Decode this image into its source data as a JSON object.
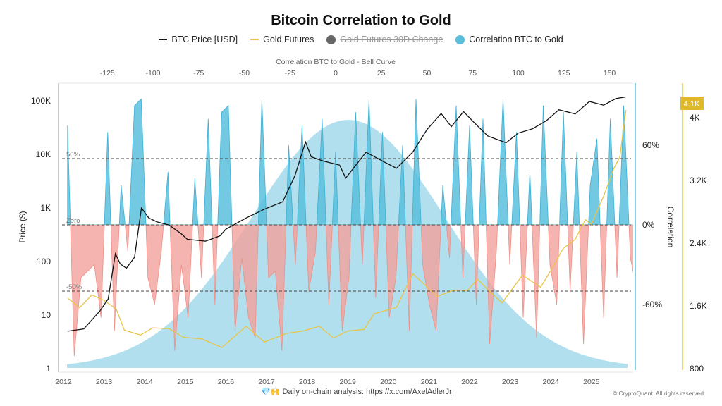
{
  "chart_data": {
    "type": "line",
    "title": "Bitcoin Correlation to Gold",
    "legend": [
      {
        "label": "BTC Price [USD]",
        "color": "#111111",
        "kind": "line",
        "hidden": false
      },
      {
        "label": "Gold Futures",
        "color": "#e8c547",
        "kind": "line",
        "hidden": false
      },
      {
        "label": "Gold Futures 30D Change",
        "color": "#666666",
        "kind": "dot",
        "hidden": true
      },
      {
        "label": "Correlation BTC to Gold",
        "color": "#5bbfdc",
        "kind": "dot",
        "hidden": false
      }
    ],
    "legend_position": "top",
    "x_axis": {
      "type": "date",
      "range": [
        2012.0,
        2026.0
      ],
      "ticks": [
        "2012",
        "2013",
        "2014",
        "2015",
        "2016",
        "2017",
        "2018",
        "2019",
        "2020",
        "2021",
        "2022",
        "2023",
        "2024",
        "2025"
      ]
    },
    "top_axis": {
      "label": "Correlation BTC to Gold - Bell Curve",
      "range": [
        -150,
        165
      ],
      "ticks": [
        -125,
        -100,
        -75,
        -50,
        -25,
        0,
        25,
        50,
        75,
        100,
        125,
        150
      ]
    },
    "y_left": {
      "label": "Price ($)",
      "scale": "log",
      "range": [
        1,
        200000
      ],
      "ticks": [
        "1",
        "10",
        "100",
        "1K",
        "10K",
        "100K"
      ]
    },
    "y_corr": {
      "label": "Correlation",
      "range": [
        -110,
        106
      ],
      "ticks": [
        "60%",
        "0%",
        "-60%"
      ],
      "unit": "%"
    },
    "y_gold": {
      "range": [
        800,
        4300
      ],
      "ticks": [
        "800",
        "1.6K",
        "2.4K",
        "3.2K",
        "4K"
      ],
      "current_badge": "4.1K"
    },
    "reference_lines": [
      {
        "label": "50%",
        "value": 50
      },
      {
        "label": "Zero",
        "value": 0
      },
      {
        "label": "-50%",
        "value": -50
      }
    ],
    "grid": false,
    "colors": {
      "btc": "#111111",
      "gold": "#e8c547",
      "corr_pos": "#5bbfdc",
      "corr_neg": "#f2a19b",
      "bell": "#a9dceb"
    },
    "bell_curve": {
      "mean": 7,
      "std": 53
    },
    "btc_price": {
      "x": [
        2012.1,
        2012.5,
        2012.9,
        2013.1,
        2013.28,
        2013.4,
        2013.55,
        2013.75,
        2013.92,
        2014.1,
        2014.3,
        2014.6,
        2014.9,
        2015.05,
        2015.5,
        2015.85,
        2016.0,
        2016.5,
        2016.95,
        2017.4,
        2017.7,
        2017.96,
        2018.1,
        2018.4,
        2018.8,
        2018.95,
        2019.45,
        2019.9,
        2020.2,
        2020.6,
        2020.95,
        2021.3,
        2021.55,
        2021.85,
        2022.1,
        2022.45,
        2022.9,
        2023.2,
        2023.55,
        2023.9,
        2024.2,
        2024.6,
        2024.95,
        2025.3,
        2025.6,
        2025.85
      ],
      "y": [
        5,
        5.5,
        12,
        20,
        140,
        90,
        75,
        120,
        1000,
        650,
        550,
        480,
        330,
        260,
        240,
        300,
        400,
        650,
        950,
        1300,
        4000,
        17000,
        9000,
        7500,
        6300,
        3600,
        11000,
        7200,
        5500,
        11000,
        29000,
        58000,
        33000,
        63000,
        40000,
        22000,
        16500,
        25000,
        30000,
        43000,
        68000,
        57000,
        97000,
        83000,
        110000,
        118000
      ]
    },
    "gold_futures": {
      "x": [
        2012.1,
        2012.4,
        2012.7,
        2013.0,
        2013.3,
        2013.5,
        2013.9,
        2014.2,
        2014.6,
        2014.95,
        2015.4,
        2015.9,
        2016.5,
        2016.95,
        2017.5,
        2017.9,
        2018.3,
        2018.65,
        2019.0,
        2019.4,
        2019.65,
        2020.2,
        2020.6,
        2020.9,
        2021.2,
        2021.6,
        2021.95,
        2022.2,
        2022.5,
        2022.8,
        2023.3,
        2023.75,
        2024.0,
        2024.3,
        2024.6,
        2024.85,
        2025.0,
        2025.3,
        2025.55,
        2025.7,
        2025.85
      ],
      "y": [
        1700,
        1580,
        1740,
        1670,
        1560,
        1290,
        1230,
        1320,
        1310,
        1200,
        1180,
        1070,
        1340,
        1140,
        1250,
        1280,
        1340,
        1190,
        1280,
        1300,
        1500,
        1580,
        2010,
        1870,
        1720,
        1800,
        1800,
        1940,
        1780,
        1640,
        1990,
        1840,
        2050,
        2330,
        2450,
        2700,
        2640,
        3000,
        3350,
        3500,
        4100
      ]
    },
    "correlation": {
      "x_start": 2012.1,
      "x_step": 0.165,
      "values": [
        75,
        -99,
        -40,
        -35,
        -30,
        -70,
        70,
        -80,
        30,
        -20,
        90,
        95,
        -40,
        -60,
        -20,
        40,
        -95,
        -30,
        -70,
        35,
        -40,
        80,
        -60,
        85,
        90,
        -80,
        -25,
        -70,
        -85,
        95,
        -40,
        -35,
        -95,
        60,
        -30,
        75,
        -50,
        -20,
        80,
        -60,
        55,
        -80,
        -40,
        85,
        -30,
        95,
        -55,
        70,
        -70,
        -40,
        60,
        -80,
        95,
        -30,
        -60,
        -80,
        30,
        -25,
        90,
        -40,
        75,
        -60,
        80,
        -90,
        -20,
        95,
        -30,
        70,
        -70,
        40,
        -85,
        90,
        -30,
        -60,
        85,
        -50,
        55,
        -90,
        30,
        65,
        -70,
        80,
        -40,
        90,
        -25,
        -50,
        75,
        -70,
        95,
        -60,
        30,
        70,
        -50,
        -75,
        65,
        -30,
        90,
        -65,
        55,
        -40,
        85,
        -80,
        -35,
        70,
        95,
        -20,
        -60,
        85,
        -85,
        40,
        -75,
        88,
        -50,
        -35,
        75,
        92,
        -60,
        -80,
        30,
        -40,
        85
      ]
    }
  },
  "footer": {
    "text": "Daily on-chain analysis: ",
    "link": "https://x.com/AxelAdlerJr",
    "emoji": "💎🙌",
    "copyright": "© CryptoQuant. All rights reserved"
  }
}
